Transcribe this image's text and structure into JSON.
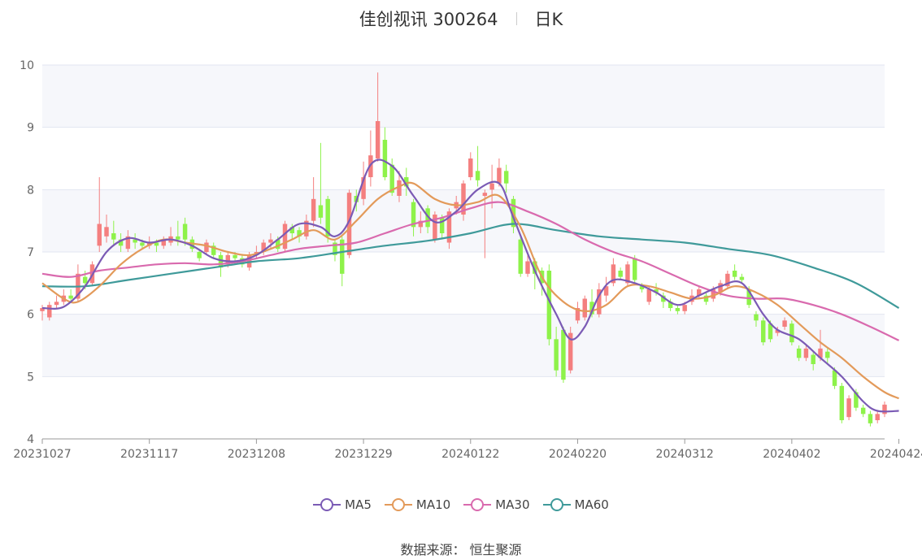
{
  "header": {
    "title": "佳创视讯 300264",
    "period": "日K"
  },
  "source_text": "数据来源： 恒生聚源",
  "colors": {
    "up": "#f47f7f",
    "down": "#8ef24a",
    "ma5": "#7b5bb5",
    "ma10": "#e39a5a",
    "ma30": "#d96aae",
    "ma60": "#3f9a9a"
  },
  "chart_data": {
    "type": "candlestick",
    "title": "佳创视讯 300264",
    "ylim": [
      4,
      10
    ],
    "yticks": [
      4,
      5,
      6,
      7,
      8,
      9,
      10
    ],
    "xtick_labels": [
      "20231027",
      "20231117",
      "20231208",
      "20231229",
      "20240122",
      "20240220",
      "20240312",
      "20240402",
      "20240424"
    ],
    "xtick_index": [
      0,
      15,
      30,
      45,
      60,
      75,
      90,
      105,
      120
    ],
    "legend": [
      "MA5",
      "MA10",
      "MA30",
      "MA60"
    ],
    "grid": true,
    "candles": [
      [
        6.05,
        6.1,
        5.9,
        6.15
      ],
      [
        5.95,
        6.15,
        5.9,
        6.2
      ],
      [
        6.15,
        6.2,
        6.1,
        6.3
      ],
      [
        6.2,
        6.3,
        6.15,
        6.4
      ],
      [
        6.3,
        6.25,
        6.2,
        6.4
      ],
      [
        6.25,
        6.65,
        6.2,
        6.8
      ],
      [
        6.6,
        6.5,
        6.4,
        6.7
      ],
      [
        6.5,
        6.8,
        6.45,
        6.85
      ],
      [
        7.1,
        7.45,
        7.0,
        8.2
      ],
      [
        7.25,
        7.4,
        7.15,
        7.6
      ],
      [
        7.3,
        7.2,
        7.1,
        7.5
      ],
      [
        7.2,
        7.1,
        7.0,
        7.3
      ],
      [
        7.05,
        7.25,
        7.0,
        7.35
      ],
      [
        7.2,
        7.15,
        7.05,
        7.3
      ],
      [
        7.15,
        7.1,
        7.05,
        7.2
      ],
      [
        7.1,
        7.15,
        7.05,
        7.25
      ],
      [
        7.15,
        7.1,
        7.0,
        7.2
      ],
      [
        7.1,
        7.2,
        7.05,
        7.25
      ],
      [
        7.15,
        7.25,
        7.1,
        7.4
      ],
      [
        7.25,
        7.2,
        7.1,
        7.5
      ],
      [
        7.45,
        7.2,
        7.1,
        7.55
      ],
      [
        7.2,
        7.05,
        7.0,
        7.25
      ],
      [
        7.0,
        6.9,
        6.85,
        7.05
      ],
      [
        7.0,
        7.15,
        6.95,
        7.2
      ],
      [
        7.1,
        6.95,
        6.9,
        7.15
      ],
      [
        6.95,
        6.75,
        6.6,
        7.0
      ],
      [
        6.8,
        6.95,
        6.75,
        7.0
      ],
      [
        6.95,
        6.9,
        6.85,
        7.0
      ],
      [
        6.9,
        6.8,
        6.75,
        6.95
      ],
      [
        6.75,
        6.95,
        6.7,
        7.0
      ],
      [
        6.95,
        7.0,
        6.9,
        7.1
      ],
      [
        7.0,
        7.15,
        6.95,
        7.2
      ],
      [
        7.15,
        7.2,
        7.05,
        7.3
      ],
      [
        7.2,
        7.05,
        7.0,
        7.25
      ],
      [
        7.05,
        7.45,
        7.0,
        7.5
      ],
      [
        7.4,
        7.3,
        7.2,
        7.45
      ],
      [
        7.35,
        7.25,
        7.15,
        7.4
      ],
      [
        7.25,
        7.5,
        7.2,
        7.6
      ],
      [
        7.5,
        7.85,
        7.4,
        8.2
      ],
      [
        7.75,
        7.55,
        7.45,
        8.75
      ],
      [
        7.85,
        7.25,
        7.15,
        7.9
      ],
      [
        7.15,
        6.95,
        6.85,
        7.2
      ],
      [
        7.2,
        6.65,
        6.45,
        7.25
      ],
      [
        6.95,
        7.95,
        6.9,
        8.0
      ],
      [
        7.9,
        7.8,
        7.65,
        8.0
      ],
      [
        7.85,
        8.2,
        7.75,
        8.45
      ],
      [
        8.2,
        8.55,
        8.05,
        8.95
      ],
      [
        8.5,
        9.1,
        8.45,
        9.88
      ],
      [
        8.8,
        8.2,
        8.15,
        9.0
      ],
      [
        8.4,
        7.95,
        7.9,
        8.5
      ],
      [
        7.9,
        8.15,
        7.8,
        8.3
      ],
      [
        8.2,
        8.05,
        7.9,
        8.35
      ],
      [
        7.8,
        7.4,
        7.25,
        7.85
      ],
      [
        7.4,
        7.5,
        7.3,
        7.65
      ],
      [
        7.7,
        7.4,
        7.3,
        7.75
      ],
      [
        7.2,
        7.6,
        7.15,
        7.65
      ],
      [
        7.55,
        7.3,
        7.2,
        7.6
      ],
      [
        7.15,
        7.65,
        7.05,
        7.7
      ],
      [
        7.7,
        7.8,
        7.6,
        7.9
      ],
      [
        7.6,
        8.1,
        7.5,
        8.15
      ],
      [
        8.2,
        8.5,
        8.15,
        8.6
      ],
      [
        8.3,
        8.15,
        8.05,
        8.7
      ],
      [
        7.9,
        7.95,
        6.9,
        8.0
      ],
      [
        8.0,
        8.1,
        7.7,
        8.4
      ],
      [
        8.1,
        8.35,
        8.05,
        8.5
      ],
      [
        8.3,
        8.1,
        7.95,
        8.4
      ],
      [
        7.85,
        7.4,
        7.3,
        7.9
      ],
      [
        7.2,
        6.65,
        6.6,
        7.25
      ],
      [
        6.65,
        6.85,
        6.6,
        7.0
      ],
      [
        6.85,
        6.65,
        6.4,
        6.9
      ],
      [
        6.7,
        6.5,
        6.3,
        6.75
      ],
      [
        6.7,
        5.6,
        5.5,
        6.8
      ],
      [
        5.6,
        5.1,
        5.0,
        5.8
      ],
      [
        5.75,
        4.95,
        4.9,
        5.8
      ],
      [
        5.1,
        5.7,
        5.05,
        5.8
      ],
      [
        5.9,
        6.1,
        5.85,
        6.2
      ],
      [
        5.95,
        6.25,
        5.9,
        6.3
      ],
      [
        6.2,
        6.0,
        5.95,
        6.4
      ],
      [
        6.0,
        6.4,
        5.95,
        6.5
      ],
      [
        6.3,
        6.45,
        6.2,
        6.6
      ],
      [
        6.5,
        6.8,
        6.45,
        6.9
      ],
      [
        6.7,
        6.6,
        6.55,
        6.75
      ],
      [
        6.5,
        6.8,
        6.45,
        6.85
      ],
      [
        6.9,
        6.55,
        6.5,
        6.95
      ],
      [
        6.45,
        6.4,
        6.35,
        6.5
      ],
      [
        6.2,
        6.4,
        6.15,
        6.45
      ],
      [
        6.4,
        6.35,
        6.3,
        6.5
      ],
      [
        6.3,
        6.2,
        6.1,
        6.35
      ],
      [
        6.2,
        6.1,
        6.05,
        6.25
      ],
      [
        6.1,
        6.05,
        6.0,
        6.15
      ],
      [
        6.05,
        6.15,
        6.0,
        6.2
      ],
      [
        6.2,
        6.3,
        6.15,
        6.4
      ],
      [
        6.3,
        6.4,
        6.25,
        6.45
      ],
      [
        6.3,
        6.2,
        6.15,
        6.35
      ],
      [
        6.25,
        6.4,
        6.2,
        6.45
      ],
      [
        6.35,
        6.5,
        6.3,
        6.55
      ],
      [
        6.45,
        6.65,
        6.4,
        6.7
      ],
      [
        6.7,
        6.6,
        6.55,
        6.8
      ],
      [
        6.6,
        6.55,
        6.5,
        6.65
      ],
      [
        6.4,
        6.15,
        6.1,
        6.45
      ],
      [
        6.0,
        5.9,
        5.8,
        6.05
      ],
      [
        5.9,
        5.55,
        5.5,
        5.95
      ],
      [
        5.85,
        5.6,
        5.55,
        5.9
      ],
      [
        5.7,
        5.75,
        5.65,
        5.8
      ],
      [
        5.8,
        5.9,
        5.75,
        5.95
      ],
      [
        5.85,
        5.55,
        5.5,
        5.9
      ],
      [
        5.45,
        5.3,
        5.25,
        5.5
      ],
      [
        5.3,
        5.45,
        5.25,
        5.5
      ],
      [
        5.35,
        5.2,
        5.1,
        5.4
      ],
      [
        5.3,
        5.45,
        5.25,
        5.75
      ],
      [
        5.4,
        5.3,
        5.2,
        5.45
      ],
      [
        5.1,
        4.85,
        4.8,
        5.15
      ],
      [
        4.85,
        4.3,
        4.25,
        4.9
      ],
      [
        4.35,
        4.65,
        4.3,
        4.7
      ],
      [
        4.75,
        4.5,
        4.45,
        4.8
      ],
      [
        4.5,
        4.4,
        4.35,
        4.55
      ],
      [
        4.4,
        4.25,
        4.2,
        4.45
      ],
      [
        4.3,
        4.4,
        4.25,
        4.45
      ],
      [
        4.4,
        4.55,
        4.35,
        4.6
      ]
    ],
    "ma_series": [
      {
        "name": "MA5",
        "points": [
          [
            0,
            6.1
          ],
          [
            3,
            6.12
          ],
          [
            6,
            6.45
          ],
          [
            9,
            7.0
          ],
          [
            12,
            7.22
          ],
          [
            15,
            7.15
          ],
          [
            18,
            7.2
          ],
          [
            21,
            7.1
          ],
          [
            24,
            6.9
          ],
          [
            27,
            6.85
          ],
          [
            30,
            6.95
          ],
          [
            33,
            7.2
          ],
          [
            36,
            7.45
          ],
          [
            39,
            7.4
          ],
          [
            41,
            7.25
          ],
          [
            43,
            7.5
          ],
          [
            46,
            8.4
          ],
          [
            49,
            8.38
          ],
          [
            52,
            7.9
          ],
          [
            55,
            7.48
          ],
          [
            58,
            7.65
          ],
          [
            61,
            8.0
          ],
          [
            64,
            8.1
          ],
          [
            66,
            7.55
          ],
          [
            69,
            6.7
          ],
          [
            72,
            6.0
          ],
          [
            74,
            5.6
          ],
          [
            76,
            5.8
          ],
          [
            78,
            6.3
          ],
          [
            80,
            6.55
          ],
          [
            83,
            6.5
          ],
          [
            86,
            6.35
          ],
          [
            89,
            6.15
          ],
          [
            92,
            6.3
          ],
          [
            95,
            6.45
          ],
          [
            98,
            6.5
          ],
          [
            101,
            6.0
          ],
          [
            103,
            5.75
          ],
          [
            106,
            5.6
          ],
          [
            109,
            5.3
          ],
          [
            112,
            5.0
          ],
          [
            115,
            4.6
          ],
          [
            117,
            4.45
          ],
          [
            120,
            4.45
          ]
        ]
      },
      {
        "name": "MA10",
        "points": [
          [
            0,
            6.5
          ],
          [
            3,
            6.25
          ],
          [
            5,
            6.2
          ],
          [
            8,
            6.45
          ],
          [
            11,
            6.8
          ],
          [
            14,
            7.05
          ],
          [
            17,
            7.2
          ],
          [
            20,
            7.15
          ],
          [
            23,
            7.1
          ],
          [
            26,
            7.0
          ],
          [
            29,
            6.95
          ],
          [
            32,
            7.05
          ],
          [
            35,
            7.2
          ],
          [
            38,
            7.35
          ],
          [
            41,
            7.2
          ],
          [
            44,
            7.5
          ],
          [
            47,
            7.85
          ],
          [
            50,
            8.05
          ],
          [
            52,
            8.1
          ],
          [
            55,
            7.85
          ],
          [
            58,
            7.75
          ],
          [
            61,
            7.8
          ],
          [
            64,
            7.9
          ],
          [
            67,
            7.4
          ],
          [
            70,
            6.6
          ],
          [
            73,
            6.2
          ],
          [
            76,
            6.05
          ],
          [
            79,
            6.15
          ],
          [
            82,
            6.45
          ],
          [
            85,
            6.45
          ],
          [
            88,
            6.35
          ],
          [
            91,
            6.25
          ],
          [
            94,
            6.3
          ],
          [
            97,
            6.45
          ],
          [
            100,
            6.35
          ],
          [
            103,
            6.15
          ],
          [
            106,
            5.85
          ],
          [
            109,
            5.55
          ],
          [
            112,
            5.3
          ],
          [
            115,
            5.0
          ],
          [
            118,
            4.75
          ],
          [
            120,
            4.65
          ]
        ]
      },
      {
        "name": "MA30",
        "points": [
          [
            0,
            6.65
          ],
          [
            4,
            6.6
          ],
          [
            8,
            6.7
          ],
          [
            12,
            6.75
          ],
          [
            16,
            6.8
          ],
          [
            20,
            6.82
          ],
          [
            24,
            6.8
          ],
          [
            28,
            6.85
          ],
          [
            32,
            6.95
          ],
          [
            36,
            7.05
          ],
          [
            40,
            7.1
          ],
          [
            44,
            7.15
          ],
          [
            48,
            7.3
          ],
          [
            52,
            7.45
          ],
          [
            56,
            7.55
          ],
          [
            60,
            7.7
          ],
          [
            64,
            7.8
          ],
          [
            68,
            7.65
          ],
          [
            72,
            7.45
          ],
          [
            76,
            7.2
          ],
          [
            80,
            7.0
          ],
          [
            84,
            6.85
          ],
          [
            88,
            6.65
          ],
          [
            92,
            6.45
          ],
          [
            96,
            6.3
          ],
          [
            100,
            6.25
          ],
          [
            104,
            6.25
          ],
          [
            108,
            6.15
          ],
          [
            112,
            6.0
          ],
          [
            116,
            5.8
          ],
          [
            120,
            5.58
          ]
        ]
      },
      {
        "name": "MA60",
        "points": [
          [
            0,
            6.45
          ],
          [
            6,
            6.45
          ],
          [
            12,
            6.55
          ],
          [
            18,
            6.65
          ],
          [
            24,
            6.75
          ],
          [
            30,
            6.85
          ],
          [
            36,
            6.9
          ],
          [
            42,
            7.0
          ],
          [
            48,
            7.1
          ],
          [
            54,
            7.18
          ],
          [
            60,
            7.3
          ],
          [
            66,
            7.45
          ],
          [
            72,
            7.35
          ],
          [
            78,
            7.25
          ],
          [
            84,
            7.2
          ],
          [
            90,
            7.15
          ],
          [
            96,
            7.05
          ],
          [
            102,
            6.95
          ],
          [
            108,
            6.75
          ],
          [
            114,
            6.5
          ],
          [
            120,
            6.1
          ]
        ]
      }
    ]
  }
}
